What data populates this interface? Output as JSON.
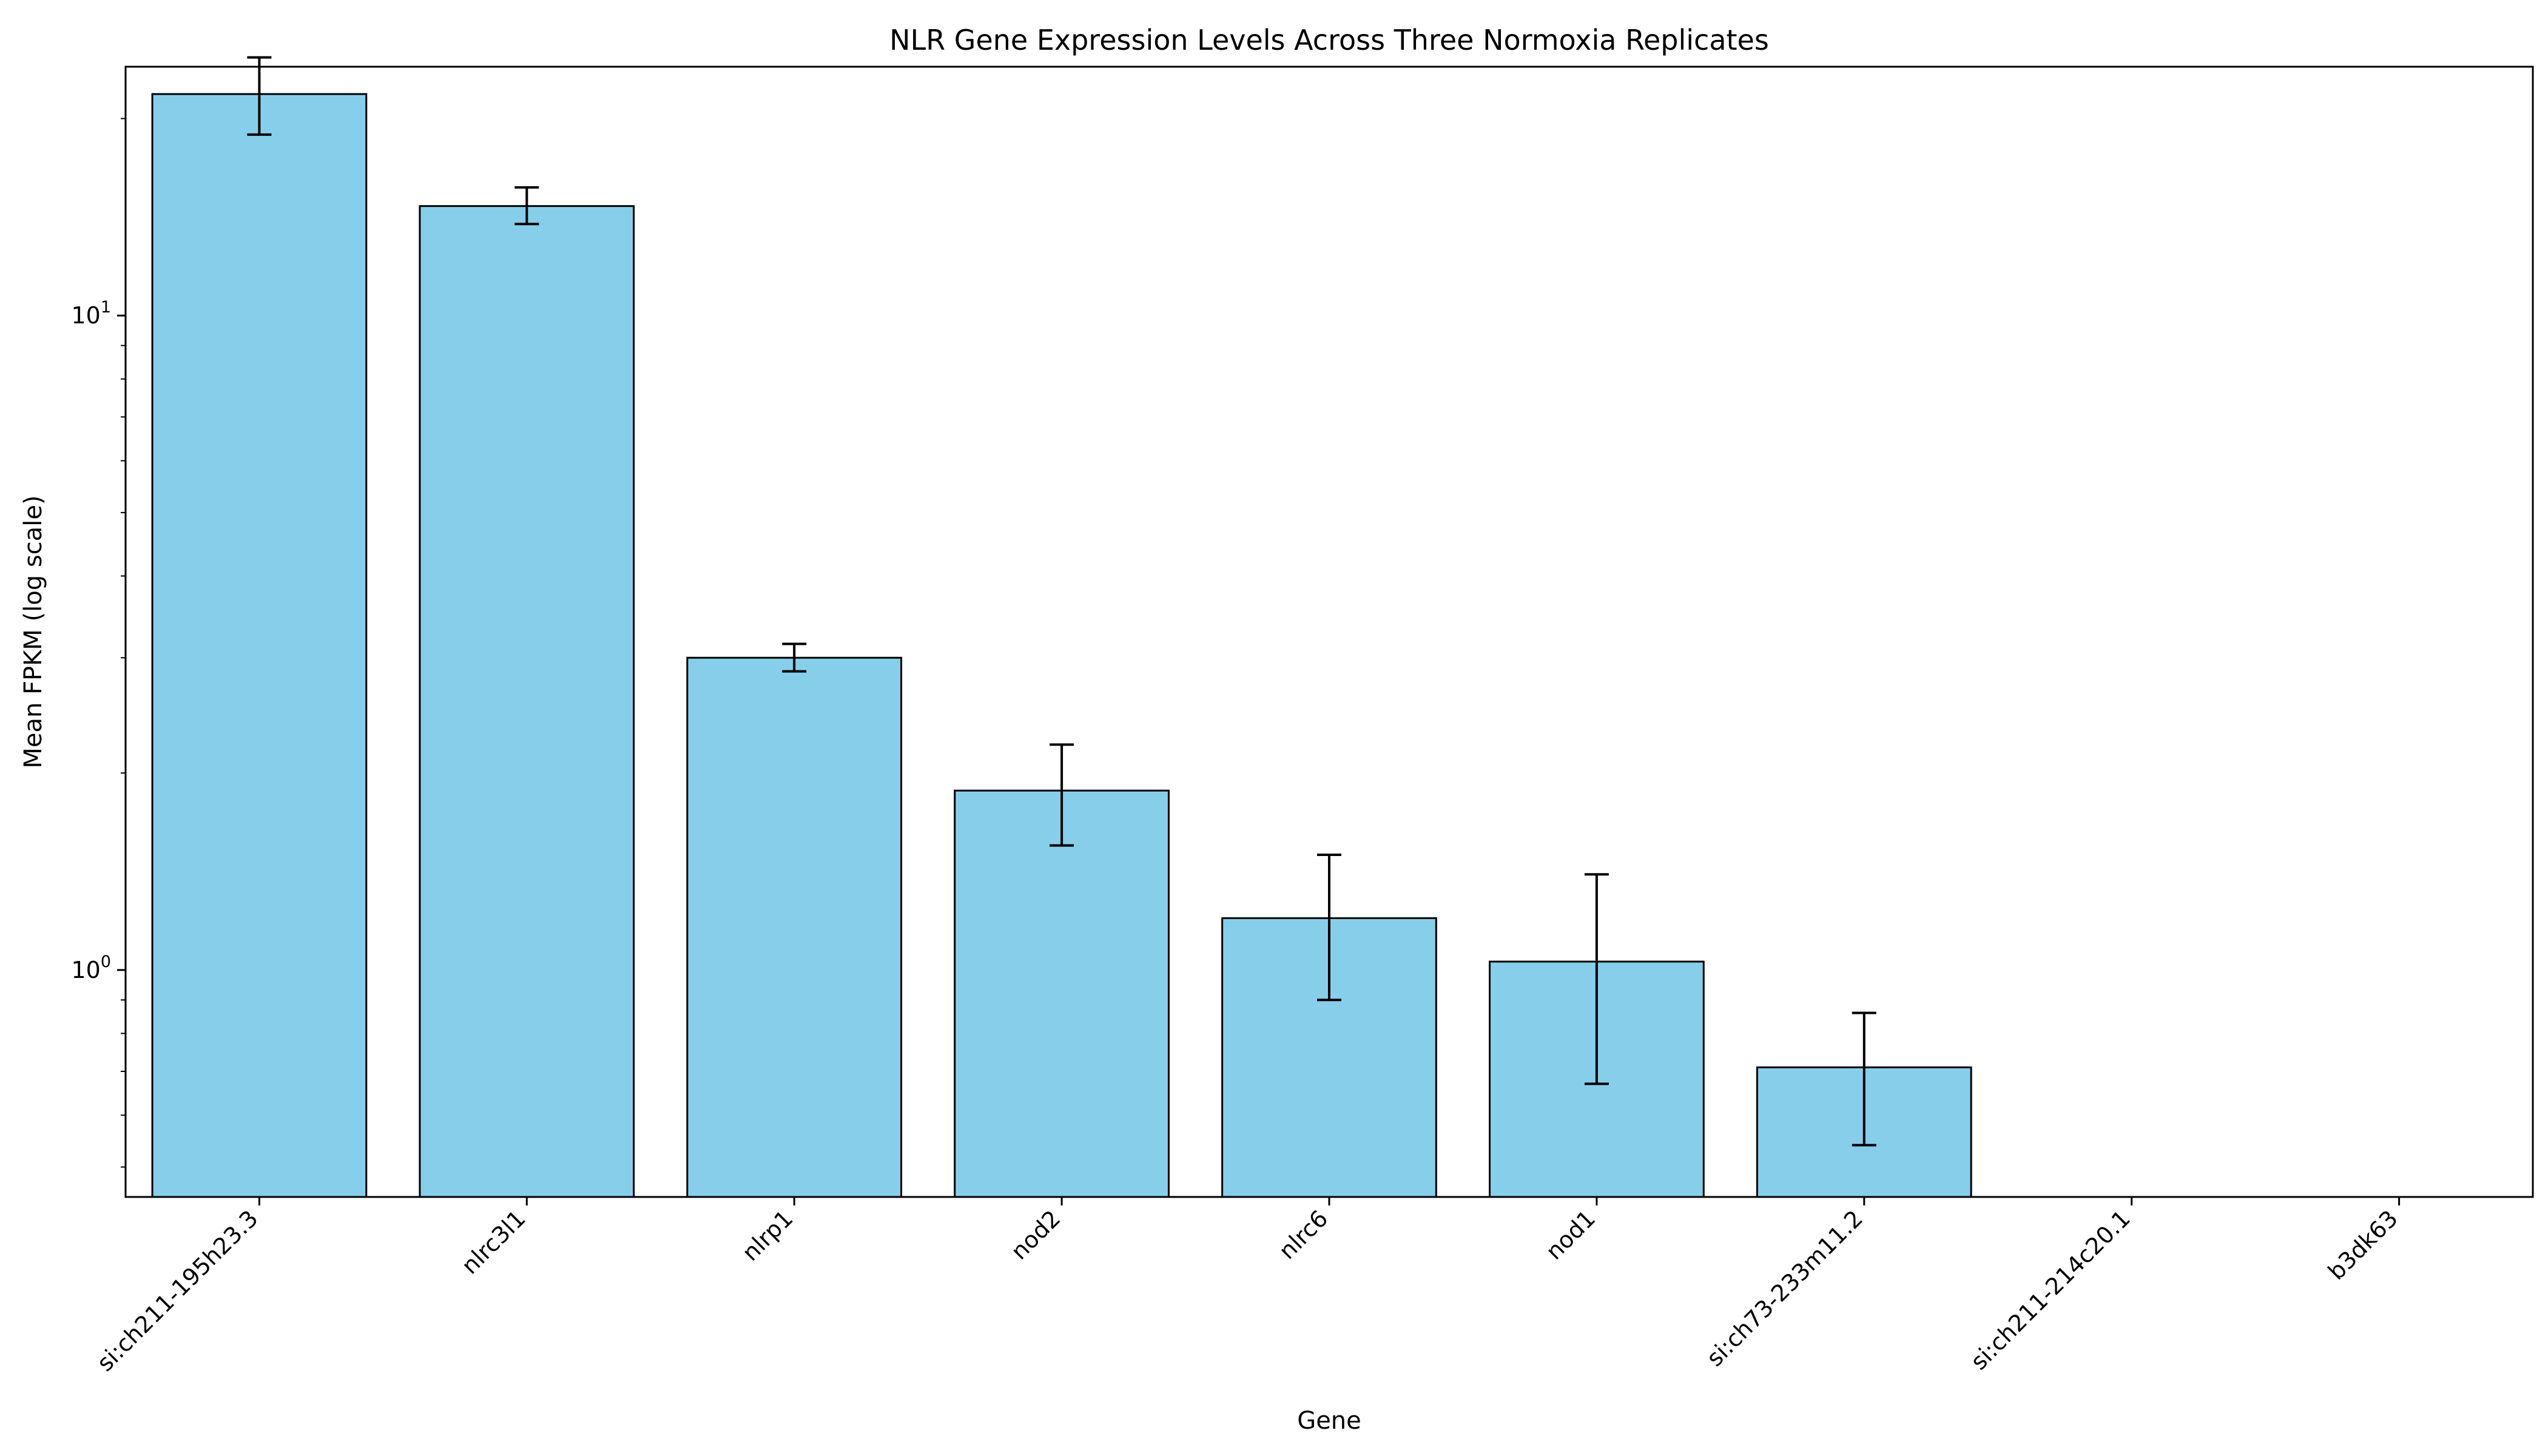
{
  "chart_data": {
    "type": "bar",
    "title": "NLR Gene Expression Levels Across Three Normoxia Replicates",
    "xlabel": "Gene",
    "ylabel": "Mean FPKM (log scale)",
    "yscale": "log",
    "ylim": [
      0.45,
      24
    ],
    "yticks": [
      {
        "value": 1,
        "base": "10",
        "exp": "0"
      },
      {
        "value": 10,
        "base": "10",
        "exp": "1"
      }
    ],
    "categories": [
      "si:ch211-195h23.3",
      "nlrc3l1",
      "nlrp1",
      "nod2",
      "nlrc6",
      "nod1",
      "si:ch73-233m11.2",
      "si:ch211-214c20.1",
      "b3dk63"
    ],
    "values": [
      21.8,
      14.7,
      3.0,
      1.88,
      1.2,
      1.03,
      0.71,
      0,
      0
    ],
    "error_low": [
      18.9,
      13.8,
      2.86,
      1.55,
      0.9,
      0.67,
      0.54,
      null,
      null
    ],
    "error_high": [
      24.8,
      15.7,
      3.15,
      2.21,
      1.5,
      1.4,
      0.86,
      null,
      null
    ],
    "grid": false,
    "bar_color": "#87CEEB",
    "edge_color": "#000000"
  }
}
